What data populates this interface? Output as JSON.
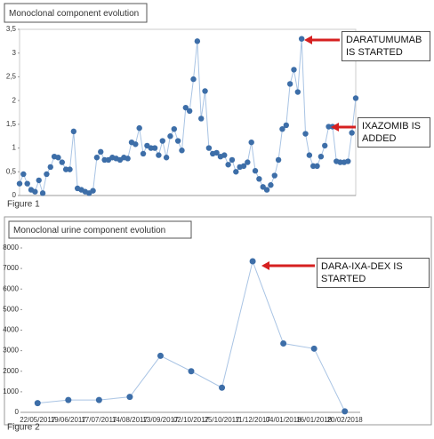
{
  "chart_data": [
    {
      "type": "line",
      "title": "Monoclonal component evolution",
      "caption": "Figure 1",
      "values": [
        0.25,
        0.45,
        0.25,
        0.12,
        0.08,
        0.32,
        0.05,
        0.45,
        0.6,
        0.82,
        0.8,
        0.7,
        0.55,
        0.55,
        1.35,
        0.15,
        0.12,
        0.08,
        0.05,
        0.1,
        0.8,
        0.92,
        0.75,
        0.75,
        0.8,
        0.78,
        0.75,
        0.8,
        0.78,
        1.12,
        1.08,
        1.42,
        0.88,
        1.05,
        1.0,
        1.0,
        0.85,
        1.15,
        0.8,
        1.25,
        1.4,
        1.15,
        0.95,
        1.85,
        1.78,
        2.45,
        3.25,
        1.62,
        2.2,
        1.0,
        0.88,
        0.9,
        0.82,
        0.85,
        0.65,
        0.75,
        0.5,
        0.6,
        0.62,
        0.7,
        1.12,
        0.52,
        0.35,
        0.18,
        0.12,
        0.22,
        0.42,
        0.75,
        1.4,
        1.48,
        2.35,
        2.65,
        2.18,
        3.3,
        1.3,
        0.85,
        0.62,
        0.62,
        0.82,
        1.05,
        1.45,
        1.45,
        0.72,
        0.7,
        0.7,
        0.72,
        1.32,
        2.05
      ],
      "color": "#3d6ea8",
      "line_color": "#a9c4e4",
      "ylim": [
        0,
        3.5
      ],
      "yticks": [
        0,
        {
          "value": 0.5,
          "label": "0,5"
        },
        1,
        {
          "value": 1.5,
          "label": "1,5"
        },
        2,
        {
          "value": 2.5,
          "label": "2,5"
        },
        3,
        {
          "value": 3.5,
          "label": "3,5"
        }
      ],
      "annotations": [
        "DARATUMUMAB IS STARTED",
        "IXAZOMIB IS ADDED"
      ]
    },
    {
      "type": "line",
      "title": "Monoclonal urine component evolution",
      "caption": "Figure 2",
      "categories": [
        "22/05/2017",
        "19/06/2017",
        "17/07/2017",
        "14/08/2017",
        "13/09/2017",
        "02/10/2017",
        "25/10/2017",
        "11/12/2017",
        "04/01/2018",
        "16/01/2018",
        "20/02/2018"
      ],
      "values": [
        450,
        600,
        600,
        750,
        2750,
        2000,
        1200,
        7350,
        3350,
        3100,
        50
      ],
      "color": "#3d6ea8",
      "line_color": "#a9c4e4",
      "ylim": [
        0,
        8000
      ],
      "yticks": [
        0,
        1000,
        2000,
        3000,
        4000,
        5000,
        6000,
        7000,
        8000
      ],
      "annotations": [
        "DARA-IXA-DEX IS STARTED"
      ]
    }
  ]
}
